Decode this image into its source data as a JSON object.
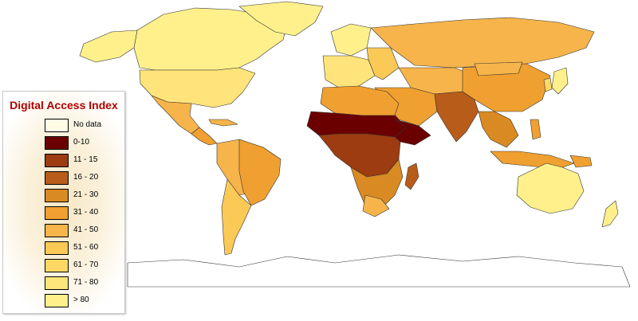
{
  "legend": {
    "title": "Digital Access Index",
    "items": [
      {
        "label": "No data",
        "color": "#fffbe5"
      },
      {
        "label": "0-10",
        "color": "#6b0000"
      },
      {
        "label": "11 - 15",
        "color": "#9c3c10"
      },
      {
        "label": "16 - 20",
        "color": "#b85c1a"
      },
      {
        "label": "21 - 30",
        "color": "#d98a22"
      },
      {
        "label": "31 - 40",
        "color": "#f0a030"
      },
      {
        "label": "41 - 50",
        "color": "#f6b44a"
      },
      {
        "label": "51 - 60",
        "color": "#fbc956"
      },
      {
        "label": "61 - 70",
        "color": "#fdd865"
      },
      {
        "label": "71 - 80",
        "color": "#fee47a"
      },
      {
        "label": "> 80",
        "color": "#fff08c"
      }
    ]
  },
  "map": {
    "ocean_color": "#ffffff",
    "border_color": "#333333"
  }
}
